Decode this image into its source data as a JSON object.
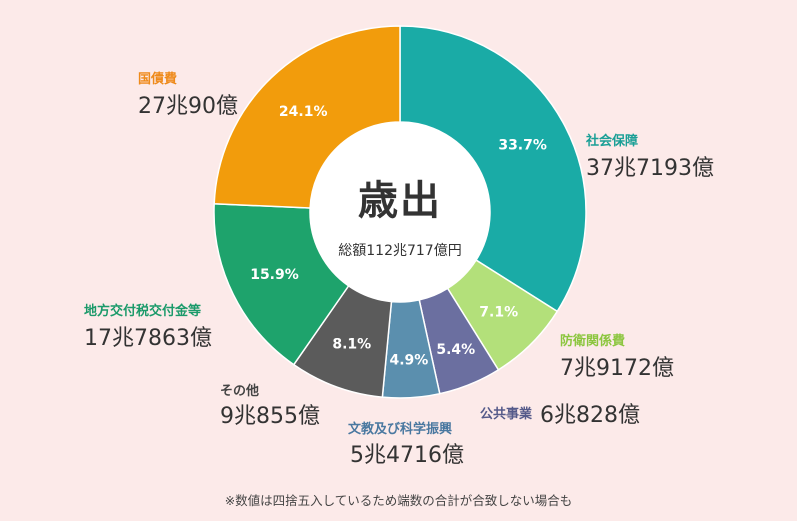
{
  "chart_data": {
    "type": "pie",
    "title": "歳出",
    "subtitle": "総額112兆717億円",
    "categories": [
      "社会保障",
      "防衛関係費",
      "公共事業",
      "文教及び科学振興",
      "その他",
      "地方交付税交付金等",
      "国債費"
    ],
    "values": [
      33.7,
      7.1,
      5.4,
      4.9,
      8.1,
      15.9,
      24.1
    ],
    "value_labels": [
      "33.7%",
      "7.1%",
      "5.4%",
      "4.9%",
      "8.1%",
      "15.9%",
      "24.1%"
    ],
    "amounts": [
      "37兆7193億",
      "7兆9172億",
      "6兆828億",
      "5兆4716億",
      "9兆855億",
      "17兆7863億",
      "27兆90億"
    ],
    "colors": [
      "#1aaba6",
      "#b3e07a",
      "#6b6fa0",
      "#5b8fae",
      "#5b5b5b",
      "#1ea36c",
      "#f29c0c"
    ],
    "label_colors": [
      "#1a9f96",
      "#8cc63f",
      "#555a8a",
      "#4a78a0",
      "#444444",
      "#1b9a6a",
      "#ee8a1a"
    ],
    "legend": "none"
  },
  "footnote": "※数値は四捨五入しているため端数の合計が合致しない場合も"
}
